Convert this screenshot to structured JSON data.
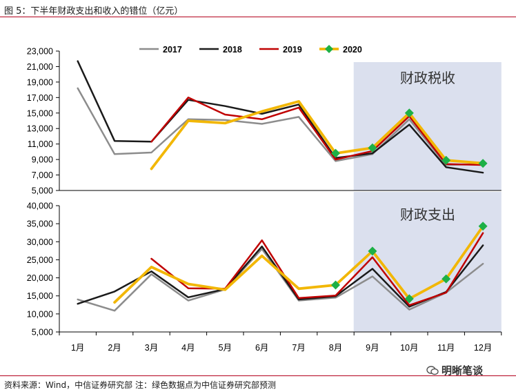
{
  "figure": {
    "title": "图 5：下半年财政支出和收入的错位（亿元）",
    "source": "资料来源：Wind，中信证券研究部   注：绿色数据点为中信证券研究部预测",
    "watermark": "明晰笔谈"
  },
  "colors": {
    "2017": "#8c8c8c",
    "2018": "#1a1a1a",
    "2019": "#c00000",
    "2020": "#f2b705",
    "forecast_marker": "#1db046",
    "highlight": "#dbe0ee",
    "rule": "#b3001b"
  },
  "chart_data": [
    {
      "type": "line",
      "id": "revenue",
      "annotation": "财政税收",
      "categories": [
        "1月",
        "2月",
        "3月",
        "4月",
        "5月",
        "6月",
        "7月",
        "8月",
        "9月",
        "10月",
        "11月",
        "12月"
      ],
      "ylim": [
        5000,
        23000
      ],
      "yticks": [
        5000,
        7000,
        9000,
        11000,
        13000,
        15000,
        17000,
        19000,
        21000,
        23000
      ],
      "ytick_labels": [
        "5,000",
        "7,000",
        "9,000",
        "11,000",
        "13,000",
        "15,000",
        "17,000",
        "19,000",
        "21,000",
        "23,000"
      ],
      "highlight_range": [
        "9月",
        "12月"
      ],
      "legend": {
        "position": "top",
        "entries": [
          "2017",
          "2018",
          "2019",
          "2020"
        ]
      },
      "series": [
        {
          "name": "2017",
          "values": [
            18200,
            9700,
            9900,
            14200,
            14100,
            13600,
            14500,
            8800,
            9700,
            14200,
            8300,
            8400
          ]
        },
        {
          "name": "2018",
          "values": [
            21700,
            11400,
            11300,
            16700,
            15900,
            14900,
            16100,
            9200,
            9800,
            13500,
            8000,
            7300
          ]
        },
        {
          "name": "2019",
          "values": [
            null,
            null,
            11300,
            17000,
            14800,
            14200,
            15700,
            9000,
            10100,
            14600,
            8400,
            8300
          ]
        },
        {
          "name": "2020",
          "values": [
            null,
            null,
            7800,
            14000,
            13700,
            15200,
            16500,
            9800,
            10500,
            15000,
            8900,
            8500
          ],
          "forecast_from": "8月"
        }
      ]
    },
    {
      "type": "line",
      "id": "expenditure",
      "annotation": "财政支出",
      "categories": [
        "1月",
        "2月",
        "3月",
        "4月",
        "5月",
        "6月",
        "7月",
        "8月",
        "9月",
        "10月",
        "11月",
        "12月"
      ],
      "ylim": [
        5000,
        40000
      ],
      "yticks": [
        5000,
        10000,
        15000,
        20000,
        25000,
        30000,
        35000,
        40000
      ],
      "ytick_labels": [
        "5,000",
        "10,000",
        "15,000",
        "20,000",
        "25,000",
        "30,000",
        "35,000",
        "40,000"
      ],
      "highlight_range": [
        "9月",
        "12月"
      ],
      "series": [
        {
          "name": "2017",
          "values": [
            14000,
            10900,
            21000,
            13700,
            16800,
            28000,
            13700,
            14500,
            20400,
            11200,
            15900,
            23900
          ]
        },
        {
          "name": "2018",
          "values": [
            12800,
            16200,
            21800,
            14600,
            16900,
            28700,
            14000,
            14900,
            22500,
            12000,
            16100,
            29000
          ]
        },
        {
          "name": "2019",
          "values": [
            null,
            null,
            25300,
            17100,
            17000,
            30400,
            14400,
            15100,
            25700,
            12400,
            15900,
            32400
          ]
        },
        {
          "name": "2020",
          "values": [
            null,
            13200,
            23000,
            18300,
            16700,
            26100,
            17000,
            18000,
            27400,
            14200,
            19700,
            34300
          ],
          "forecast_from": "8月"
        }
      ]
    }
  ]
}
